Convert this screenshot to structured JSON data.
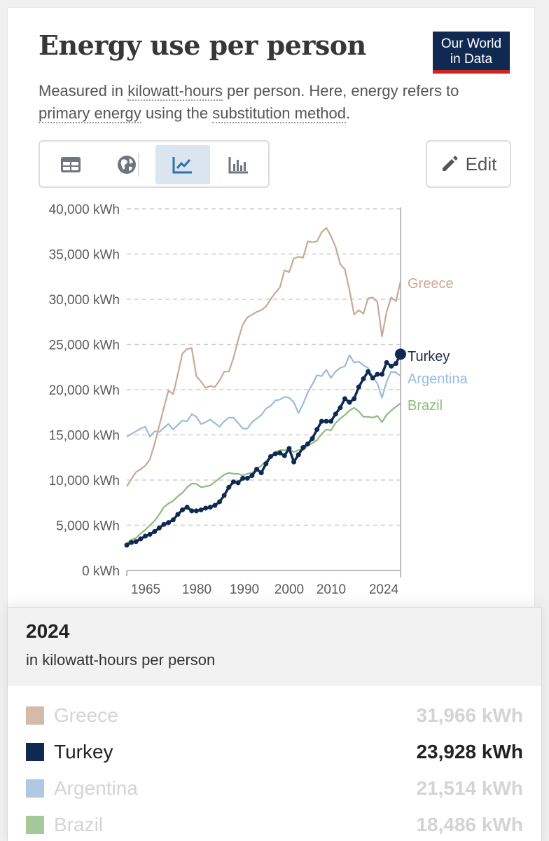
{
  "header": {
    "title": "Energy use per person",
    "logo_line1": "Our World",
    "logo_line2": "in Data",
    "subtitle_pre": "Measured in ",
    "subtitle_link1": "kilowatt-hours",
    "subtitle_mid1": " per person. Here, energy refers to ",
    "subtitle_link2": "primary energy",
    "subtitle_mid2": " using the ",
    "subtitle_link3": "substitution method",
    "subtitle_end": "."
  },
  "toolbar": {
    "tabs": [
      "table-icon",
      "map-icon",
      "line-chart-icon",
      "bar-chart-icon"
    ],
    "active_tab": "line-chart-icon",
    "edit_label": "Edit"
  },
  "colors": {
    "greece": "#c9a994",
    "turkey": "#0f2952",
    "argentina": "#9bbbdc",
    "brazil": "#8cbc7f",
    "grid": "#cfcfcf"
  },
  "chart_data": {
    "type": "line",
    "title": "Energy use per person",
    "ylim": [
      0,
      40000
    ],
    "yticks": [
      0,
      5000,
      10000,
      15000,
      20000,
      25000,
      30000,
      35000,
      40000
    ],
    "ytick_labels": [
      "0 kWh",
      "5,000 kWh",
      "10,000 kWh",
      "15,000 kWh",
      "20,000 kWh",
      "25,000 kWh",
      "30,000 kWh",
      "35,000 kWh",
      "40,000 kWh"
    ],
    "xlim": [
      1965,
      2024
    ],
    "xticks": [
      1965,
      1980,
      1990,
      2000,
      2010,
      2024
    ],
    "xtick_labels": [
      "1965",
      "1980",
      "1990",
      "2000",
      "2010",
      "2024"
    ],
    "series": [
      {
        "name": "Greece",
        "color": "#c9a994",
        "markers": false,
        "points": [
          [
            1965,
            9300
          ],
          [
            1966,
            10100
          ],
          [
            1967,
            10900
          ],
          [
            1968,
            11200
          ],
          [
            1969,
            11600
          ],
          [
            1970,
            12300
          ],
          [
            1971,
            14000
          ],
          [
            1972,
            16000
          ],
          [
            1973,
            18000
          ],
          [
            1974,
            19900
          ],
          [
            1975,
            19500
          ],
          [
            1976,
            21700
          ],
          [
            1977,
            24000
          ],
          [
            1978,
            24500
          ],
          [
            1979,
            24600
          ],
          [
            1980,
            21500
          ],
          [
            1981,
            20900
          ],
          [
            1982,
            20200
          ],
          [
            1983,
            20400
          ],
          [
            1984,
            20300
          ],
          [
            1985,
            21000
          ],
          [
            1986,
            22000
          ],
          [
            1987,
            22000
          ],
          [
            1988,
            23500
          ],
          [
            1989,
            25500
          ],
          [
            1990,
            27200
          ],
          [
            1991,
            28000
          ],
          [
            1992,
            28300
          ],
          [
            1993,
            28600
          ],
          [
            1994,
            28800
          ],
          [
            1995,
            29200
          ],
          [
            1996,
            30000
          ],
          [
            1997,
            30700
          ],
          [
            1998,
            31300
          ],
          [
            1999,
            33200
          ],
          [
            2000,
            33000
          ],
          [
            2001,
            34500
          ],
          [
            2002,
            34700
          ],
          [
            2003,
            34600
          ],
          [
            2004,
            36400
          ],
          [
            2005,
            36300
          ],
          [
            2006,
            36400
          ],
          [
            2007,
            37400
          ],
          [
            2008,
            37900
          ],
          [
            2009,
            37000
          ],
          [
            2010,
            35800
          ],
          [
            2011,
            33900
          ],
          [
            2012,
            33300
          ],
          [
            2013,
            31000
          ],
          [
            2014,
            28300
          ],
          [
            2015,
            28800
          ],
          [
            2016,
            28400
          ],
          [
            2017,
            30100
          ],
          [
            2018,
            30200
          ],
          [
            2019,
            29700
          ],
          [
            2020,
            25900
          ],
          [
            2021,
            28600
          ],
          [
            2022,
            30200
          ],
          [
            2023,
            29800
          ],
          [
            2024,
            31966
          ]
        ]
      },
      {
        "name": "Argentina",
        "color": "#9bbbdc",
        "markers": false,
        "points": [
          [
            1965,
            14800
          ],
          [
            1966,
            15100
          ],
          [
            1967,
            15400
          ],
          [
            1968,
            15700
          ],
          [
            1969,
            15900
          ],
          [
            1970,
            14800
          ],
          [
            1971,
            15400
          ],
          [
            1972,
            15300
          ],
          [
            1973,
            15800
          ],
          [
            1974,
            16200
          ],
          [
            1975,
            15600
          ],
          [
            1976,
            16100
          ],
          [
            1977,
            16600
          ],
          [
            1978,
            16500
          ],
          [
            1979,
            17300
          ],
          [
            1980,
            17000
          ],
          [
            1981,
            16200
          ],
          [
            1982,
            16400
          ],
          [
            1983,
            16700
          ],
          [
            1984,
            16300
          ],
          [
            1985,
            15900
          ],
          [
            1986,
            16500
          ],
          [
            1987,
            16900
          ],
          [
            1988,
            16900
          ],
          [
            1989,
            16300
          ],
          [
            1990,
            15700
          ],
          [
            1991,
            15700
          ],
          [
            1992,
            16400
          ],
          [
            1993,
            16800
          ],
          [
            1994,
            17200
          ],
          [
            1995,
            17900
          ],
          [
            1996,
            18200
          ],
          [
            1997,
            18800
          ],
          [
            1998,
            18900
          ],
          [
            1999,
            19200
          ],
          [
            2000,
            19100
          ],
          [
            2001,
            18600
          ],
          [
            2002,
            17400
          ],
          [
            2003,
            18400
          ],
          [
            2004,
            19700
          ],
          [
            2005,
            20600
          ],
          [
            2006,
            21600
          ],
          [
            2007,
            21500
          ],
          [
            2008,
            22200
          ],
          [
            2009,
            21300
          ],
          [
            2010,
            22000
          ],
          [
            2011,
            22400
          ],
          [
            2012,
            22600
          ],
          [
            2013,
            23800
          ],
          [
            2014,
            23000
          ],
          [
            2015,
            23100
          ],
          [
            2016,
            22700
          ],
          [
            2017,
            22400
          ],
          [
            2018,
            21400
          ],
          [
            2019,
            20700
          ],
          [
            2020,
            19100
          ],
          [
            2021,
            20900
          ],
          [
            2022,
            22000
          ],
          [
            2023,
            21900
          ],
          [
            2024,
            21514
          ]
        ]
      },
      {
        "name": "Brazil",
        "color": "#8cbc7f",
        "markers": false,
        "points": [
          [
            1965,
            3000
          ],
          [
            1966,
            3400
          ],
          [
            1967,
            3600
          ],
          [
            1968,
            4100
          ],
          [
            1969,
            4500
          ],
          [
            1970,
            5000
          ],
          [
            1971,
            5500
          ],
          [
            1972,
            6200
          ],
          [
            1973,
            7000
          ],
          [
            1974,
            7400
          ],
          [
            1975,
            7700
          ],
          [
            1976,
            8200
          ],
          [
            1977,
            8600
          ],
          [
            1978,
            9200
          ],
          [
            1979,
            9600
          ],
          [
            1980,
            9600
          ],
          [
            1981,
            9200
          ],
          [
            1982,
            9300
          ],
          [
            1983,
            9400
          ],
          [
            1984,
            9800
          ],
          [
            1985,
            10200
          ],
          [
            1986,
            10600
          ],
          [
            1987,
            10800
          ],
          [
            1988,
            10700
          ],
          [
            1989,
            10700
          ],
          [
            1990,
            10500
          ],
          [
            1991,
            10700
          ],
          [
            1992,
            10800
          ],
          [
            1993,
            11200
          ],
          [
            1994,
            11600
          ],
          [
            1995,
            12100
          ],
          [
            1996,
            12600
          ],
          [
            1997,
            13100
          ],
          [
            1998,
            13300
          ],
          [
            1999,
            13300
          ],
          [
            2000,
            13400
          ],
          [
            2001,
            13100
          ],
          [
            2002,
            13300
          ],
          [
            2003,
            13300
          ],
          [
            2004,
            13800
          ],
          [
            2005,
            14100
          ],
          [
            2006,
            14400
          ],
          [
            2007,
            15100
          ],
          [
            2008,
            15600
          ],
          [
            2009,
            15500
          ],
          [
            2010,
            16300
          ],
          [
            2011,
            16800
          ],
          [
            2012,
            17200
          ],
          [
            2013,
            17700
          ],
          [
            2014,
            18000
          ],
          [
            2015,
            17600
          ],
          [
            2016,
            17000
          ],
          [
            2017,
            17000
          ],
          [
            2018,
            16900
          ],
          [
            2019,
            17100
          ],
          [
            2020,
            16400
          ],
          [
            2021,
            17200
          ],
          [
            2022,
            17700
          ],
          [
            2023,
            18100
          ],
          [
            2024,
            18486
          ]
        ]
      },
      {
        "name": "Turkey",
        "color": "#0f2952",
        "markers": true,
        "points": [
          [
            1965,
            2800
          ],
          [
            1966,
            3100
          ],
          [
            1967,
            3200
          ],
          [
            1968,
            3500
          ],
          [
            1969,
            3800
          ],
          [
            1970,
            4000
          ],
          [
            1971,
            4300
          ],
          [
            1972,
            4700
          ],
          [
            1973,
            5100
          ],
          [
            1974,
            5300
          ],
          [
            1975,
            5600
          ],
          [
            1976,
            6200
          ],
          [
            1977,
            6700
          ],
          [
            1978,
            7000
          ],
          [
            1979,
            6600
          ],
          [
            1980,
            6600
          ],
          [
            1981,
            6700
          ],
          [
            1982,
            6900
          ],
          [
            1983,
            7000
          ],
          [
            1984,
            7200
          ],
          [
            1985,
            7600
          ],
          [
            1986,
            8300
          ],
          [
            1987,
            9200
          ],
          [
            1988,
            9800
          ],
          [
            1989,
            9700
          ],
          [
            1990,
            10200
          ],
          [
            1991,
            10200
          ],
          [
            1992,
            10500
          ],
          [
            1993,
            11200
          ],
          [
            1994,
            10800
          ],
          [
            1995,
            11800
          ],
          [
            1996,
            12600
          ],
          [
            1997,
            12900
          ],
          [
            1998,
            13000
          ],
          [
            1999,
            12700
          ],
          [
            2000,
            13500
          ],
          [
            2001,
            12000
          ],
          [
            2002,
            12800
          ],
          [
            2003,
            13600
          ],
          [
            2004,
            14000
          ],
          [
            2005,
            14600
          ],
          [
            2006,
            15600
          ],
          [
            2007,
            16500
          ],
          [
            2008,
            16500
          ],
          [
            2009,
            16500
          ],
          [
            2010,
            17300
          ],
          [
            2011,
            18000
          ],
          [
            2012,
            19000
          ],
          [
            2013,
            18600
          ],
          [
            2014,
            19000
          ],
          [
            2015,
            20300
          ],
          [
            2016,
            21200
          ],
          [
            2017,
            22000
          ],
          [
            2018,
            21300
          ],
          [
            2019,
            21700
          ],
          [
            2020,
            21700
          ],
          [
            2021,
            23000
          ],
          [
            2022,
            22600
          ],
          [
            2023,
            22900
          ],
          [
            2024,
            23928
          ]
        ]
      }
    ],
    "end_labels": [
      "Greece",
      "Turkey",
      "Argentina",
      "Brazil"
    ]
  },
  "tooltip": {
    "year": "2024",
    "unit": "in kilowatt-hours per person",
    "rows": [
      {
        "name": "Greece",
        "value": "31,966 kWh",
        "color": "#c9a994",
        "faded": true
      },
      {
        "name": "Turkey",
        "value": "23,928 kWh",
        "color": "#0f2952",
        "faded": false
      },
      {
        "name": "Argentina",
        "value": "21,514 kWh",
        "color": "#9bbbdc",
        "faded": true
      },
      {
        "name": "Brazil",
        "value": "18,486 kWh",
        "color": "#8cbc7f",
        "faded": true
      }
    ]
  }
}
